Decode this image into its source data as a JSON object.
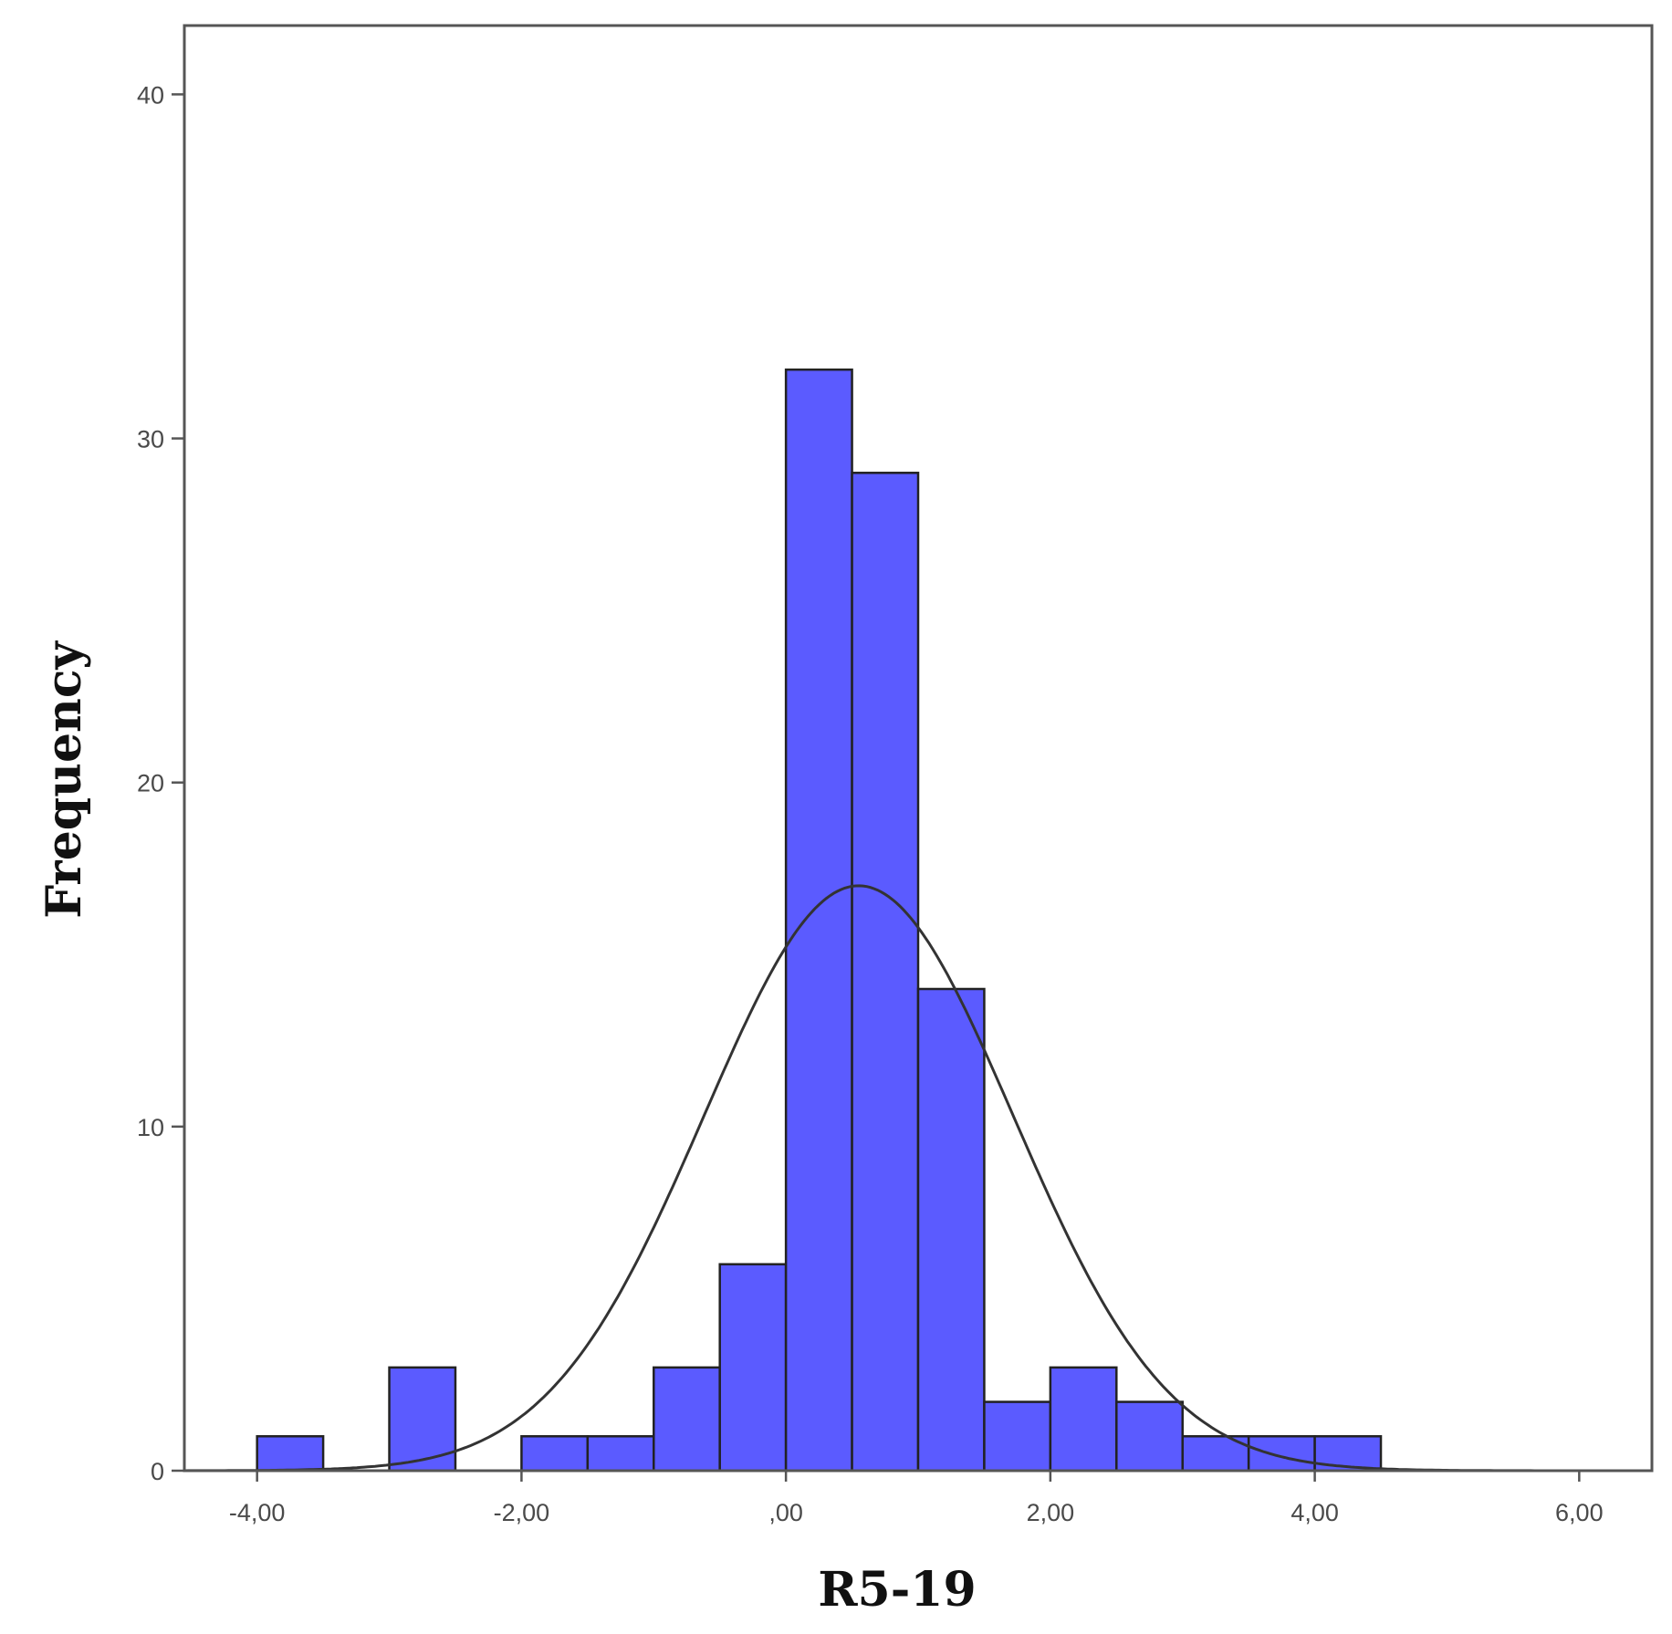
{
  "chart_data": {
    "type": "bar",
    "histogram": true,
    "xlabel": "R5-19",
    "ylabel": "Frequency",
    "xlim": [
      -4.55,
      6.55
    ],
    "ylim": [
      0,
      42
    ],
    "bin_width": 0.5,
    "bins": [
      {
        "x0": -4.0,
        "x1": -3.5,
        "count": 1
      },
      {
        "x0": -3.5,
        "x1": -3.0,
        "count": 0
      },
      {
        "x0": -3.0,
        "x1": -2.5,
        "count": 3
      },
      {
        "x0": -2.5,
        "x1": -2.0,
        "count": 0
      },
      {
        "x0": -2.0,
        "x1": -1.5,
        "count": 1
      },
      {
        "x0": -1.5,
        "x1": -1.0,
        "count": 1
      },
      {
        "x0": -1.0,
        "x1": -0.5,
        "count": 3
      },
      {
        "x0": -0.5,
        "x1": 0.0,
        "count": 6
      },
      {
        "x0": 0.0,
        "x1": 0.5,
        "count": 32
      },
      {
        "x0": 0.5,
        "x1": 1.0,
        "count": 29
      },
      {
        "x0": 1.0,
        "x1": 1.5,
        "count": 14
      },
      {
        "x0": 1.5,
        "x1": 2.0,
        "count": 2
      },
      {
        "x0": 2.0,
        "x1": 2.5,
        "count": 3
      },
      {
        "x0": 2.5,
        "x1": 3.0,
        "count": 2
      },
      {
        "x0": 3.0,
        "x1": 3.5,
        "count": 1
      },
      {
        "x0": 3.5,
        "x1": 4.0,
        "count": 1
      },
      {
        "x0": 4.0,
        "x1": 4.5,
        "count": 1
      }
    ],
    "x_ticks": [
      {
        "value": -4,
        "label": "-4,00"
      },
      {
        "value": -2,
        "label": "-2,00"
      },
      {
        "value": 0,
        "label": ",00"
      },
      {
        "value": 2,
        "label": "2,00"
      },
      {
        "value": 4,
        "label": "4,00"
      },
      {
        "value": 6,
        "label": "6,00"
      }
    ],
    "y_ticks": [
      {
        "value": 0,
        "label": "0"
      },
      {
        "value": 10,
        "label": "10"
      },
      {
        "value": 20,
        "label": "20"
      },
      {
        "value": 30,
        "label": "30"
      },
      {
        "value": 40,
        "label": "40"
      }
    ],
    "normal_curve": {
      "mean": 0.55,
      "std": 1.17,
      "peak": 17.0
    },
    "grid": false,
    "colors": {
      "bar_fill": "#5b5bff",
      "bar_stroke": "#222222",
      "curve": "#333333",
      "frame": "#555555"
    }
  }
}
